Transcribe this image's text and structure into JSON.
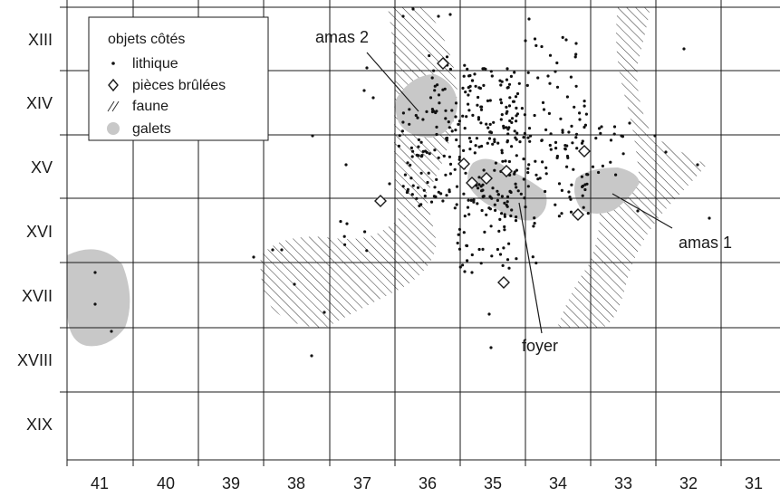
{
  "row_labels": [
    "XIII",
    "XIV",
    "XV",
    "XVI",
    "XVII",
    "XVIII",
    "XIX"
  ],
  "column_labels": [
    "41",
    "40",
    "39",
    "38",
    "37",
    "36",
    "35",
    "34",
    "33",
    "32",
    "31"
  ],
  "legend": {
    "title": "objets côtés",
    "items": [
      {
        "label": "lithique",
        "symbol": "dot-icon"
      },
      {
        "label": "pièces brûlées",
        "symbol": "diamond-icon"
      },
      {
        "label": "faune",
        "symbol": "hatch-icon"
      },
      {
        "label": "galets",
        "symbol": "grey-blob-icon"
      }
    ]
  },
  "annotations": {
    "amas2": "amas 2",
    "amas1": "amas 1",
    "foyer": "foyer"
  },
  "colors": {
    "grid": "#1a1a1a",
    "galets": "#c8c8c8",
    "hatch": "#333333",
    "dots": "#111111"
  }
}
